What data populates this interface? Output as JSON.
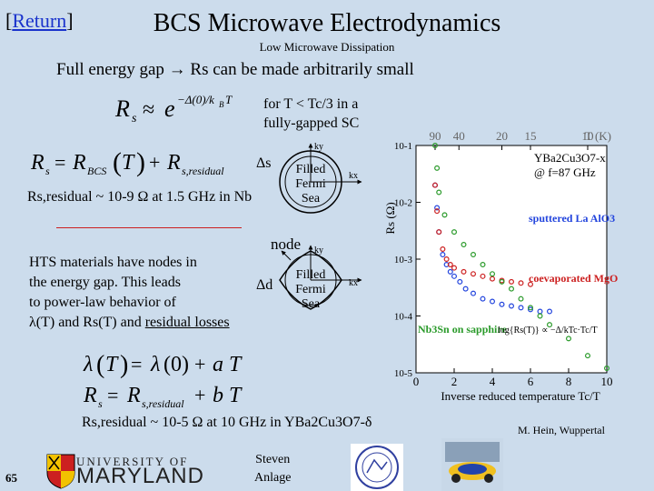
{
  "header": {
    "return_bracket_open": "[",
    "return_link": "Return",
    "return_bracket_close": "]",
    "title": "BCS Microwave Electrodynamics",
    "subtitle": "Low Microwave Dissipation"
  },
  "body": {
    "gap_statement": "Full energy gap → Rs can be made arbitrarily small",
    "condition_line1": "for T < Tc/3 in a",
    "condition_line2": "fully-gapped SC",
    "residual_nb": "Rs,residual ~ 10-9 Ω at 1.5 GHz in Nb",
    "hts_lines": [
      "HTS materials have nodes in",
      "the energy gap.  This leads",
      "to power-law behavior of",
      "λ(T) and Rs(T) and "
    ],
    "hts_underlined": "residual losses",
    "residual_ybco": "Rs,residual ~ 10-5 Ω at 10 GHz in YBa2Cu3O7-δ",
    "credit": "M. Hein, Wuppertal",
    "page_number": "65",
    "author_line1": "Steven",
    "author_line2": "Anlage",
    "university_small": "UNIVERSITY OF",
    "university_big": "MARYLAND"
  },
  "equations": {
    "rs_exp": "Rs ≈ e^{−Δ(0)/kBT}",
    "rs_sum": "Rs = RBCS(T) + Rs,residual",
    "lambda_eq": "λ(T) = λ(0) + a T",
    "rs_linear": "Rs = Rs,residual + b T"
  },
  "fermi_diagrams": {
    "top_gap_label": "Δs",
    "bottom_node_label": "node",
    "bottom_gap_label": "Δd",
    "sea_line1": "Filled",
    "sea_line2": "Fermi",
    "sea_line3": "Sea",
    "ky": "ky",
    "kx": "kx"
  },
  "colors": {
    "background": "#ccdcec",
    "link": "#1a33cc",
    "blue_series": "#2244dd",
    "red_series": "#cc2020",
    "green_series": "#2a9a2a"
  },
  "chart_data": {
    "type": "scatter",
    "title_formula": "YBa2Cu3O7-x",
    "title_freq": "@ f=87 GHz",
    "top_axis_label": "T (K)",
    "top_ticks": [
      "90",
      "40",
      "20",
      "15",
      "10"
    ],
    "xlabel": "Inverse reduced temperature Tc/T",
    "ylabel": "Rs (Ω)",
    "x_ticks": [
      "0",
      "2",
      "4",
      "6",
      "8",
      "10"
    ],
    "y_ticks": [
      "10-1",
      "10-2",
      "10-3",
      "10-4",
      "10-5"
    ],
    "xlim": [
      0,
      10
    ],
    "ylim_log10": [
      -5,
      -1
    ],
    "y_scale": "log",
    "fit_label": "log{Rs(T)} ∝ −Δ/kTc·Tc/T",
    "series": [
      {
        "name": "sputtered La AlO3",
        "color": "#2244dd",
        "x": [
          1.0,
          1.1,
          1.2,
          1.4,
          1.6,
          1.8,
          2.0,
          2.3,
          2.6,
          3.0,
          3.5,
          4.0,
          4.5,
          5.0,
          5.5,
          6.0,
          6.5,
          7.0
        ],
        "y": [
          0.02,
          0.008,
          0.003,
          0.0012,
          0.0008,
          0.0006,
          0.0005,
          0.0004,
          0.0003,
          0.00025,
          0.0002,
          0.00018,
          0.00016,
          0.00015,
          0.00014,
          0.00013,
          0.00012,
          0.00012
        ]
      },
      {
        "name": "coevaporated MgO",
        "color": "#cc2020",
        "x": [
          1.0,
          1.1,
          1.2,
          1.4,
          1.6,
          1.8,
          2.0,
          2.5,
          3.0,
          3.5,
          4.0,
          4.5,
          5.0,
          5.5,
          6.0
        ],
        "y": [
          0.02,
          0.007,
          0.003,
          0.0015,
          0.001,
          0.0008,
          0.0007,
          0.0006,
          0.00055,
          0.0005,
          0.00045,
          0.00042,
          0.0004,
          0.00038,
          0.00036
        ]
      },
      {
        "name": "Nb3Sn on sapphire",
        "color": "#2a9a2a",
        "x": [
          1.0,
          1.1,
          1.2,
          1.5,
          2.0,
          2.5,
          3.0,
          3.5,
          4.0,
          4.5,
          5.0,
          5.5,
          6.0,
          6.5,
          7.0,
          8.0,
          9.0,
          10.0
        ],
        "y": [
          0.1,
          0.04,
          0.015,
          0.006,
          0.003,
          0.0018,
          0.0012,
          0.0008,
          0.00055,
          0.0004,
          0.0003,
          0.0002,
          0.00014,
          0.0001,
          7e-05,
          4e-05,
          2e-05,
          1.2e-05
        ]
      }
    ],
    "legend": "inside"
  }
}
